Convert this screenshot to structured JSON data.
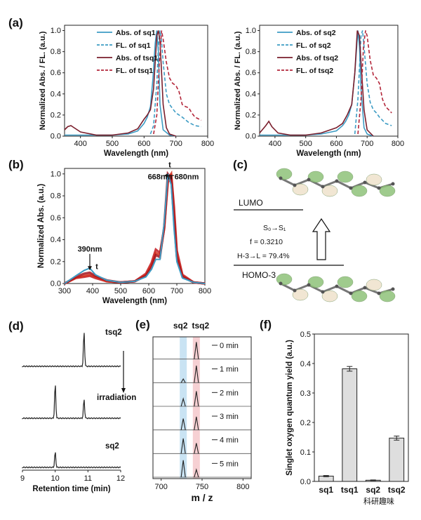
{
  "figure": {
    "panel_labels": [
      "(a)",
      "(b)",
      "(c)",
      "(d)",
      "(e)",
      "(f)"
    ],
    "watermark": "科研趣味"
  },
  "colors": {
    "blue": "#3d9cc4",
    "red": "#b3263a",
    "dark_red": "#7a1e2c",
    "tsq2_red": "#c2323f",
    "black": "#222222",
    "bar_fill": "#dedede",
    "highlight_blue": "#bcdcf0",
    "highlight_red": "#f4c4c8"
  },
  "chart_data": [
    {
      "id": "a1",
      "type": "line",
      "xlabel": "Wavelength (nm)",
      "ylabel": "Normalized Abs. / FL. (a.u.)",
      "xlim": [
        350,
        800
      ],
      "ylim": [
        0,
        1.05
      ],
      "xticks": [
        400,
        500,
        600,
        700,
        800
      ],
      "yticks": [
        0.0,
        0.2,
        0.4,
        0.6,
        0.8,
        1.0
      ],
      "legend": "top-right",
      "series": [
        {
          "name": "Abs. of sq1",
          "style": "solid",
          "color": "blue",
          "x": [
            350,
            400,
            450,
            500,
            550,
            580,
            600,
            610,
            620,
            628,
            635,
            640,
            645,
            650,
            660,
            680,
            700
          ],
          "y": [
            0.01,
            0.01,
            0.01,
            0.01,
            0.02,
            0.05,
            0.12,
            0.18,
            0.28,
            0.55,
            0.88,
            1.0,
            0.8,
            0.3,
            0.06,
            0.01,
            0.0
          ]
        },
        {
          "name": "FL. of sq1",
          "style": "dashed",
          "color": "blue",
          "x": [
            620,
            630,
            640,
            645,
            650,
            655,
            660,
            670,
            680,
            690,
            700,
            720,
            740,
            760,
            780
          ],
          "y": [
            0.02,
            0.1,
            0.5,
            0.85,
            1.0,
            0.9,
            0.7,
            0.4,
            0.3,
            0.26,
            0.22,
            0.18,
            0.13,
            0.1,
            0.09
          ]
        },
        {
          "name": "Abs. of tsq1",
          "style": "solid",
          "color": "dark_red",
          "x": [
            350,
            360,
            370,
            380,
            400,
            450,
            500,
            550,
            580,
            600,
            610,
            620,
            630,
            640,
            645,
            650,
            655,
            660,
            670,
            680,
            700
          ],
          "y": [
            0.06,
            0.09,
            0.1,
            0.08,
            0.04,
            0.01,
            0.01,
            0.03,
            0.07,
            0.16,
            0.2,
            0.25,
            0.45,
            0.95,
            1.0,
            0.9,
            0.6,
            0.3,
            0.08,
            0.02,
            0.0
          ]
        },
        {
          "name": "FL. of tsq1",
          "style": "dashed",
          "color": "red",
          "x": [
            630,
            640,
            648,
            655,
            660,
            670,
            680,
            690,
            700,
            710,
            720,
            730,
            740,
            750,
            760,
            780
          ],
          "y": [
            0.02,
            0.2,
            0.7,
            1.0,
            0.92,
            0.7,
            0.55,
            0.5,
            0.48,
            0.42,
            0.3,
            0.28,
            0.27,
            0.22,
            0.18,
            0.15
          ]
        }
      ]
    },
    {
      "id": "a2",
      "type": "line",
      "xlabel": "Wavelength (nm)",
      "ylabel": "Normalized Abs. / FL. (a.u.)",
      "xlim": [
        350,
        800
      ],
      "ylim": [
        0,
        1.05
      ],
      "xticks": [
        400,
        500,
        600,
        700,
        800
      ],
      "yticks": [
        0.0,
        0.2,
        0.4,
        0.6,
        0.8,
        1.0
      ],
      "legend": "top-right",
      "series": [
        {
          "name": "Abs. of sq2",
          "style": "solid",
          "color": "blue",
          "x": [
            350,
            400,
            450,
            500,
            550,
            600,
            620,
            630,
            640,
            650,
            660,
            670,
            675,
            680,
            690,
            700,
            720
          ],
          "y": [
            0.01,
            0.01,
            0.01,
            0.01,
            0.02,
            0.05,
            0.1,
            0.14,
            0.2,
            0.3,
            0.6,
            1.0,
            0.85,
            0.45,
            0.08,
            0.02,
            0.0
          ]
        },
        {
          "name": "FL. of sq2",
          "style": "dashed",
          "color": "blue",
          "x": [
            660,
            670,
            680,
            685,
            690,
            700,
            710,
            720,
            730,
            740,
            760,
            780
          ],
          "y": [
            0.02,
            0.35,
            0.95,
            1.0,
            0.85,
            0.5,
            0.32,
            0.25,
            0.22,
            0.18,
            0.12,
            0.1
          ]
        },
        {
          "name": "Abs. of tsq2",
          "style": "solid",
          "color": "dark_red",
          "x": [
            350,
            370,
            380,
            390,
            410,
            450,
            500,
            550,
            600,
            620,
            635,
            650,
            660,
            668,
            675,
            680,
            690,
            700,
            720
          ],
          "y": [
            0.03,
            0.1,
            0.14,
            0.09,
            0.03,
            0.01,
            0.01,
            0.03,
            0.08,
            0.12,
            0.2,
            0.3,
            0.6,
            1.0,
            0.95,
            0.7,
            0.25,
            0.06,
            0.0
          ]
        },
        {
          "name": "FL. of tsq2",
          "style": "dashed",
          "color": "red",
          "x": [
            670,
            680,
            688,
            695,
            700,
            710,
            720,
            730,
            740,
            750,
            760,
            780
          ],
          "y": [
            0.02,
            0.35,
            0.85,
            1.0,
            0.95,
            0.72,
            0.58,
            0.55,
            0.5,
            0.35,
            0.28,
            0.22
          ]
        }
      ]
    },
    {
      "id": "b",
      "type": "line",
      "xlabel": "Wavelength (nm)",
      "ylabel": "Normalized Abs. (a.u.)",
      "xlim": [
        300,
        800
      ],
      "ylim": [
        0,
        1.05
      ],
      "xticks": [
        300,
        400,
        500,
        600,
        700,
        800
      ],
      "yticks": [
        0.0,
        0.2,
        0.4,
        0.6,
        0.8,
        1.0
      ],
      "annotations": [
        {
          "text": "668nm",
          "at": [
            640,
            0.95
          ]
        },
        {
          "text": "t",
          "at": [
            675,
            1.06
          ]
        },
        {
          "text": "680nm",
          "at": [
            735,
            0.95
          ]
        },
        {
          "text": "390nm",
          "at": [
            390,
            0.29
          ]
        },
        {
          "text": "t",
          "at": [
            415,
            0.13
          ]
        }
      ],
      "series": [
        {
          "color": "red",
          "x": [
            300,
            340,
            370,
            390,
            410,
            450,
            500,
            550,
            590,
            610,
            625,
            640,
            655,
            668,
            680,
            690,
            700,
            720,
            760,
            800
          ],
          "y": [
            0.0,
            0.05,
            0.06,
            0.07,
            0.05,
            0.02,
            0.01,
            0.02,
            0.09,
            0.19,
            0.31,
            0.28,
            0.5,
            0.92,
            1.0,
            0.7,
            0.3,
            0.08,
            0.01,
            0.0
          ]
        },
        {
          "color": "red",
          "x": [
            300,
            340,
            370,
            390,
            410,
            450,
            500,
            550,
            590,
            610,
            625,
            640,
            655,
            668,
            680,
            690,
            700,
            720,
            760,
            800
          ],
          "y": [
            0.0,
            0.05,
            0.07,
            0.08,
            0.06,
            0.02,
            0.01,
            0.02,
            0.08,
            0.17,
            0.28,
            0.26,
            0.5,
            0.95,
            1.0,
            0.65,
            0.27,
            0.07,
            0.01,
            0.0
          ]
        },
        {
          "color": "red",
          "x": [
            300,
            340,
            370,
            390,
            410,
            450,
            500,
            550,
            590,
            610,
            625,
            640,
            655,
            668,
            680,
            690,
            700,
            720,
            760,
            800
          ],
          "y": [
            0.0,
            0.06,
            0.09,
            0.1,
            0.07,
            0.03,
            0.01,
            0.02,
            0.07,
            0.15,
            0.26,
            0.24,
            0.52,
            1.0,
            0.96,
            0.58,
            0.24,
            0.06,
            0.01,
            0.0
          ]
        },
        {
          "color": "blue",
          "x": [
            300,
            340,
            370,
            390,
            410,
            450,
            500,
            550,
            590,
            610,
            625,
            640,
            655,
            668,
            680,
            690,
            700,
            720,
            760,
            800
          ],
          "y": [
            0.0,
            0.07,
            0.12,
            0.14,
            0.08,
            0.03,
            0.01,
            0.02,
            0.06,
            0.13,
            0.22,
            0.22,
            0.55,
            1.0,
            0.9,
            0.5,
            0.2,
            0.05,
            0.01,
            0.0
          ]
        }
      ]
    },
    {
      "id": "d",
      "type": "line",
      "xlabel": "Retention time (min)",
      "xlim": [
        9,
        12
      ],
      "xticks": [
        9,
        10,
        11,
        12
      ],
      "annotations": [
        {
          "text": "irradiation"
        }
      ],
      "series": [
        {
          "name": "tsq2",
          "peaks": [
            {
              "x": 10.88,
              "h": 1.0
            }
          ]
        },
        {
          "name": "",
          "peaks": [
            {
              "x": 10.0,
              "h": 1.0
            },
            {
              "x": 10.88,
              "h": 0.55
            }
          ]
        },
        {
          "name": "sq2",
          "peaks": [
            {
              "x": 10.0,
              "h": 0.45
            }
          ]
        }
      ]
    },
    {
      "id": "e",
      "type": "line",
      "xlabel": "m / z",
      "xlim": [
        690,
        810
      ],
      "xticks": [
        700,
        750,
        800
      ],
      "highlights": [
        {
          "label": "sq2",
          "x": 727,
          "color": "highlight_blue"
        },
        {
          "label": "tsq2",
          "x": 743,
          "color": "highlight_red"
        }
      ],
      "series": [
        {
          "name": "0 min",
          "peaks": [
            {
              "x": 743,
              "h": 0.9
            }
          ]
        },
        {
          "name": "1 min",
          "peaks": [
            {
              "x": 727,
              "h": 0.2
            },
            {
              "x": 743,
              "h": 0.9
            }
          ]
        },
        {
          "name": "2 min",
          "peaks": [
            {
              "x": 727,
              "h": 0.4
            },
            {
              "x": 743,
              "h": 0.8
            }
          ]
        },
        {
          "name": "3 min",
          "peaks": [
            {
              "x": 727,
              "h": 0.6
            },
            {
              "x": 743,
              "h": 0.7
            }
          ]
        },
        {
          "name": "4 min",
          "peaks": [
            {
              "x": 727,
              "h": 0.8
            },
            {
              "x": 743,
              "h": 0.55
            }
          ]
        },
        {
          "name": "5 min",
          "peaks": [
            {
              "x": 727,
              "h": 0.9
            },
            {
              "x": 743,
              "h": 0.4
            }
          ]
        }
      ]
    },
    {
      "id": "f",
      "type": "bar",
      "ylabel": "Singlet oxygen quantum yield (a.u.)",
      "categories": [
        "sq1",
        "tsq1",
        "sq2",
        "tsq2"
      ],
      "values": [
        0.018,
        0.382,
        0.004,
        0.147
      ],
      "errors": [
        0.002,
        0.008,
        0.001,
        0.007
      ],
      "ylim": [
        0,
        0.5
      ],
      "yticks": [
        0.0,
        0.1,
        0.2,
        0.3,
        0.4,
        0.5
      ]
    }
  ],
  "panel_c": {
    "lumo": "LUMO",
    "transition": "S₀→S₁",
    "oscillator": "f  =  0.3210",
    "contribution": "H-3→L = 79.4%",
    "homo": "HOMO-3"
  }
}
